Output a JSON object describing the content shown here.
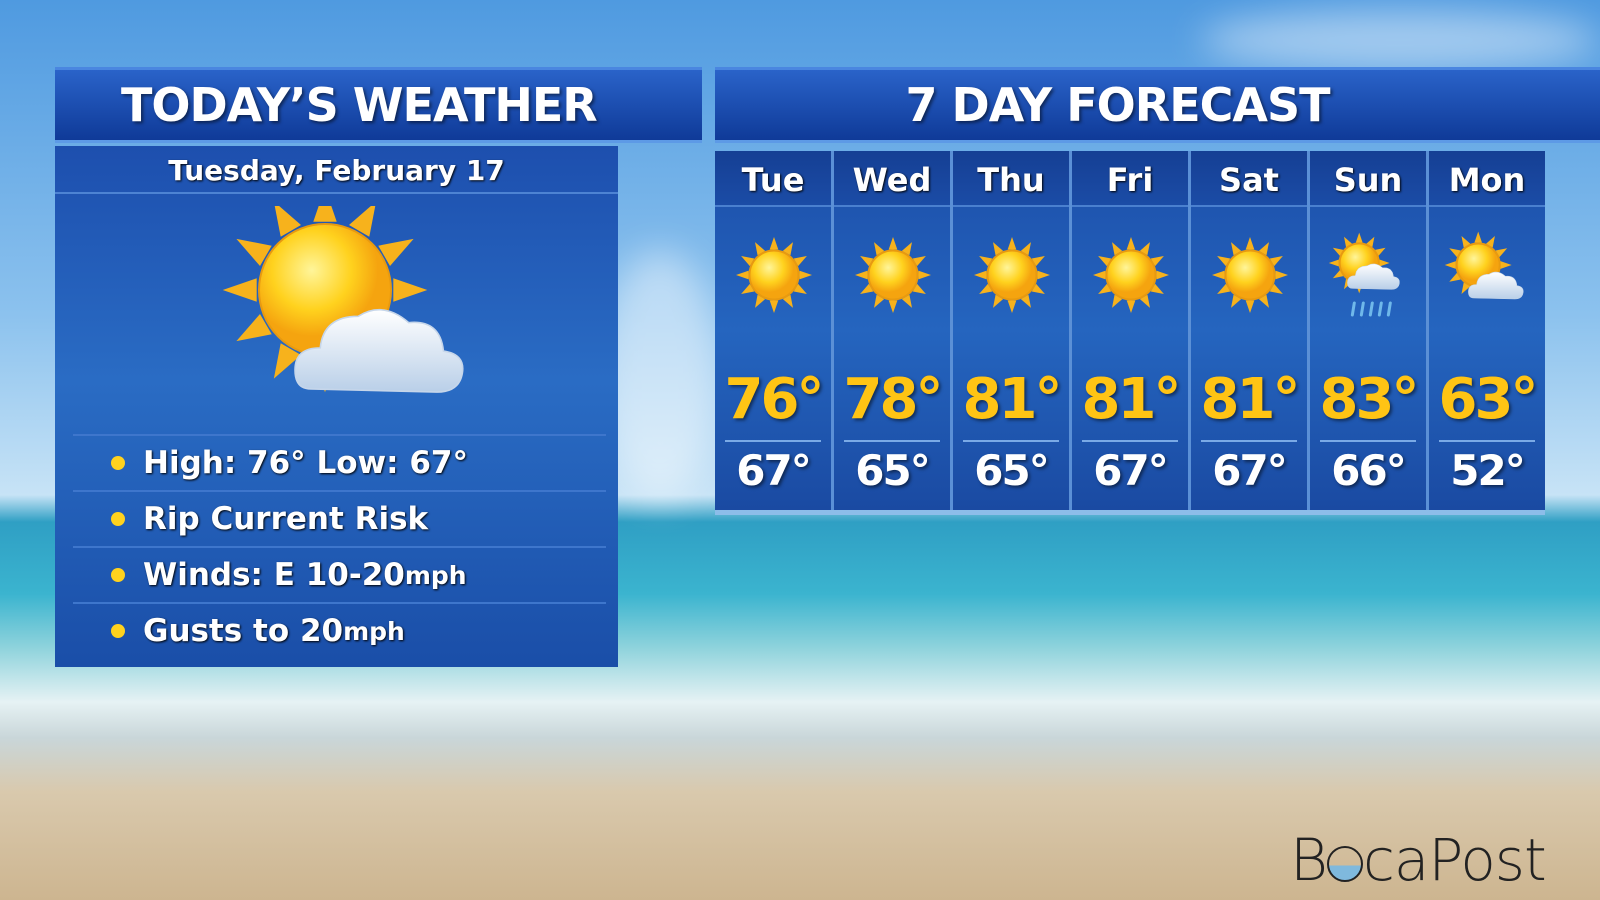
{
  "today": {
    "title": "TODAY’S WEATHER",
    "date": "Tuesday, February 17",
    "icon": "partly-cloudy",
    "bullets": [
      {
        "label": "High: 76° Low: 67°"
      },
      {
        "label": "Rip Current Risk"
      },
      {
        "label": "Winds: E 10-20",
        "unit": " mph"
      },
      {
        "label": "Gusts to 20",
        "unit": " mph"
      }
    ]
  },
  "forecast": {
    "title": "7 DAY FORECAST",
    "days": [
      {
        "day": "Tue",
        "icon": "sunny",
        "high": "76°",
        "low": "67°"
      },
      {
        "day": "Wed",
        "icon": "sunny",
        "high": "78°",
        "low": "65°"
      },
      {
        "day": "Thu",
        "icon": "sunny",
        "high": "81°",
        "low": "65°"
      },
      {
        "day": "Fri",
        "icon": "sunny",
        "high": "81°",
        "low": "67°"
      },
      {
        "day": "Sat",
        "icon": "sunny",
        "high": "81°",
        "low": "67°"
      },
      {
        "day": "Sun",
        "icon": "partly-cloudy-rain",
        "high": "83°",
        "low": "66°"
      },
      {
        "day": "Mon",
        "icon": "partly-cloudy",
        "high": "63°",
        "low": "52°"
      }
    ]
  },
  "logo": "BocaPost",
  "colors": {
    "high_temp": "#ffc414",
    "panel": "#1d4fae",
    "bullet": "#ffd21e"
  }
}
